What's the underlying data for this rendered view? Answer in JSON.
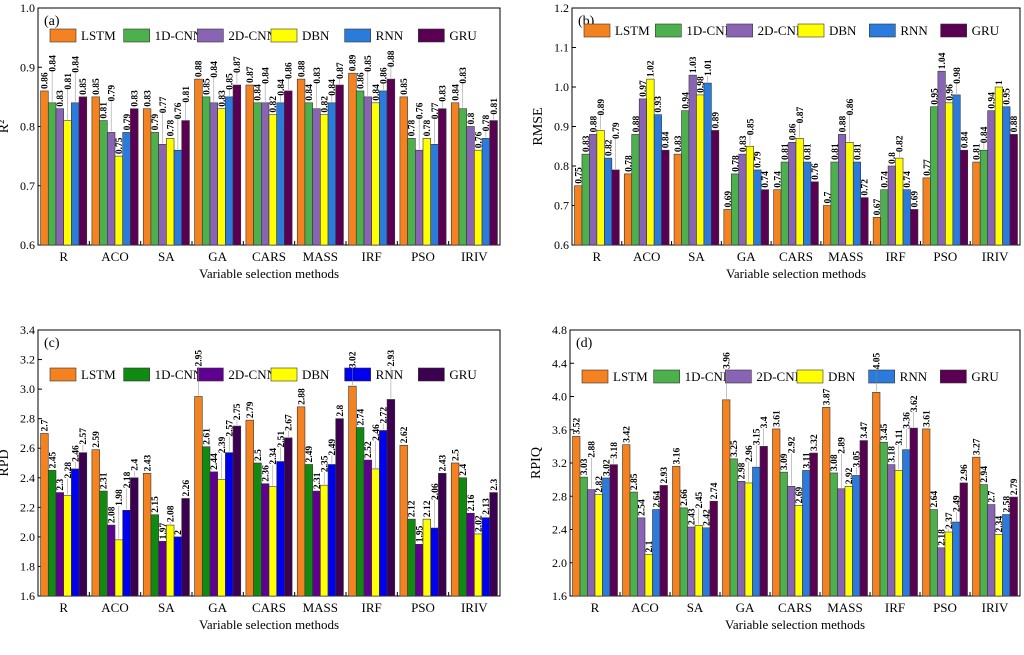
{
  "colors": {
    "default": [
      "#F58220",
      "#4CB04C",
      "#8A64B4",
      "#FFFF00",
      "#2A7BDB",
      "#5A0052"
    ],
    "panel_c": [
      "#F58220",
      "#108A10",
      "#600090",
      "#FFFF00",
      "#0000F0",
      "#3C0050"
    ]
  },
  "chart_data": [
    {
      "type": "bar",
      "panel_label": "(a)",
      "ylabel": "R²",
      "xlabel": "Variable selection methods",
      "ylim": [
        0.6,
        1.0
      ],
      "yticks": [
        "0.6",
        "0.7",
        "0.8",
        "0.9",
        "1.0"
      ],
      "legend": "top",
      "categories": [
        "R",
        "ACO",
        "SA",
        "GA",
        "CARS",
        "MASS",
        "IRF",
        "PSO",
        "IRIV"
      ],
      "series": [
        {
          "name": "LSTM",
          "values": [
            0.86,
            0.85,
            0.83,
            0.88,
            0.87,
            0.88,
            0.89,
            0.85,
            0.84
          ]
        },
        {
          "name": "1D-CNN",
          "values": [
            0.84,
            0.81,
            0.79,
            0.85,
            0.84,
            0.84,
            0.86,
            0.78,
            0.83
          ]
        },
        {
          "name": "2D-CNN",
          "values": [
            0.83,
            0.79,
            0.77,
            0.84,
            0.84,
            0.83,
            0.85,
            0.76,
            0.8
          ]
        },
        {
          "name": "DBN",
          "values": [
            0.81,
            0.75,
            0.78,
            0.83,
            0.82,
            0.82,
            0.84,
            0.78,
            0.76
          ]
        },
        {
          "name": "RNN",
          "values": [
            0.84,
            0.79,
            0.76,
            0.85,
            0.84,
            0.84,
            0.86,
            0.77,
            0.78
          ]
        },
        {
          "name": "GRU",
          "values": [
            0.85,
            0.83,
            0.81,
            0.87,
            0.86,
            0.87,
            0.88,
            0.83,
            0.81
          ]
        }
      ]
    },
    {
      "type": "bar",
      "panel_label": "(b)",
      "ylabel": "RMSE",
      "xlabel": "Variable selection methods",
      "ylim": [
        0.6,
        1.2
      ],
      "yticks": [
        "0.6",
        "0.7",
        "0.8",
        "0.9",
        "1.0",
        "1.1",
        "1.2"
      ],
      "legend": "top",
      "categories": [
        "R",
        "ACO",
        "SA",
        "GA",
        "CARS",
        "MASS",
        "IRF",
        "PSO",
        "IRIV"
      ],
      "series": [
        {
          "name": "LSTM",
          "values": [
            0.75,
            0.78,
            0.83,
            0.69,
            0.74,
            0.7,
            0.67,
            0.77,
            0.81
          ]
        },
        {
          "name": "1D-CNN",
          "values": [
            0.83,
            0.88,
            0.94,
            0.78,
            0.81,
            0.81,
            0.74,
            0.95,
            0.84
          ]
        },
        {
          "name": "2D-CNN",
          "values": [
            0.88,
            0.97,
            1.03,
            0.83,
            0.86,
            0.88,
            0.8,
            1.04,
            0.94
          ]
        },
        {
          "name": "DBN",
          "values": [
            0.89,
            1.02,
            0.98,
            0.85,
            0.87,
            0.86,
            0.82,
            0.96,
            1
          ]
        },
        {
          "name": "RNN",
          "values": [
            0.82,
            0.93,
            1.01,
            0.79,
            0.81,
            0.81,
            0.74,
            0.98,
            0.95
          ]
        },
        {
          "name": "GRU",
          "values": [
            0.79,
            0.84,
            0.89,
            0.74,
            0.76,
            0.72,
            0.69,
            0.84,
            0.88
          ]
        }
      ]
    },
    {
      "type": "bar",
      "panel_label": "(c)",
      "ylabel": "RPD",
      "xlabel": "Variable selection methods",
      "ylim": [
        1.6,
        3.4
      ],
      "yticks": [
        "1.6",
        "1.8",
        "2.0",
        "2.2",
        "2.4",
        "2.6",
        "2.8",
        "3.0",
        "3.2",
        "3.4"
      ],
      "legend": "top",
      "categories": [
        "R",
        "ACO",
        "SA",
        "GA",
        "CARS",
        "MASS",
        "IRF",
        "PSO",
        "IRIV"
      ],
      "series": [
        {
          "name": "LSTM",
          "values": [
            2.7,
            2.59,
            2.43,
            2.95,
            2.79,
            2.88,
            3.02,
            2.62,
            2.5
          ]
        },
        {
          "name": "1D-CNN",
          "values": [
            2.45,
            2.31,
            2.15,
            2.61,
            2.5,
            2.49,
            2.74,
            2.12,
            2.4
          ]
        },
        {
          "name": "2D-CNN",
          "values": [
            2.3,
            2.08,
            1.97,
            2.44,
            2.36,
            2.31,
            2.52,
            1.95,
            2.16
          ]
        },
        {
          "name": "DBN",
          "values": [
            2.28,
            1.98,
            2.08,
            2.39,
            2.34,
            2.35,
            2.46,
            2.12,
            2.02
          ]
        },
        {
          "name": "RNN",
          "values": [
            2.46,
            2.18,
            2,
            2.57,
            2.51,
            2.49,
            2.72,
            2.06,
            2.13
          ]
        },
        {
          "name": "GRU",
          "values": [
            2.57,
            2.4,
            2.26,
            2.75,
            2.67,
            2.8,
            2.93,
            2.43,
            2.3
          ]
        }
      ]
    },
    {
      "type": "bar",
      "panel_label": "(d)",
      "ylabel": "RPIQ",
      "xlabel": "Variable selection methods",
      "ylim": [
        1.6,
        4.8
      ],
      "yticks": [
        "1.6",
        "2.0",
        "2.4",
        "2.8",
        "3.2",
        "3.6",
        "4.0",
        "4.4",
        "4.8"
      ],
      "legend": "top",
      "categories": [
        "R",
        "ACO",
        "SA",
        "GA",
        "CARS",
        "MASS",
        "IRF",
        "PSO",
        "IRIV"
      ],
      "series": [
        {
          "name": "LSTM",
          "values": [
            3.52,
            3.42,
            3.16,
            3.96,
            3.61,
            3.87,
            4.05,
            3.61,
            3.27
          ]
        },
        {
          "name": "1D-CNN",
          "values": [
            3.03,
            2.85,
            2.66,
            3.25,
            3.09,
            3.08,
            3.45,
            2.64,
            2.94
          ]
        },
        {
          "name": "2D-CNN",
          "values": [
            2.88,
            2.54,
            2.43,
            2.98,
            2.92,
            2.89,
            3.18,
            2.18,
            2.7
          ]
        },
        {
          "name": "DBN",
          "values": [
            2.82,
            2.1,
            2.45,
            2.96,
            2.69,
            2.92,
            3.11,
            2.37,
            2.34
          ]
        },
        {
          "name": "RNN",
          "values": [
            3.02,
            2.64,
            2.42,
            3.15,
            3.11,
            3.05,
            3.36,
            2.49,
            2.58
          ]
        },
        {
          "name": "GRU",
          "values": [
            3.18,
            2.93,
            2.74,
            3.4,
            3.32,
            3.47,
            3.62,
            2.96,
            2.79
          ]
        }
      ]
    }
  ]
}
